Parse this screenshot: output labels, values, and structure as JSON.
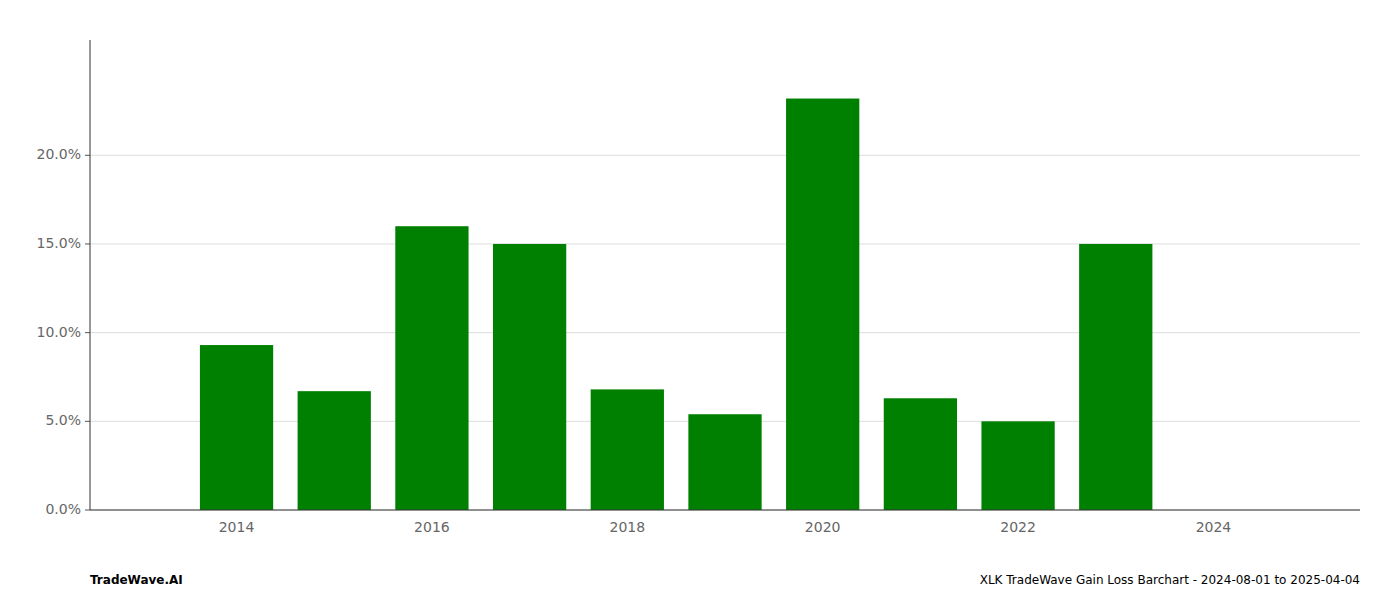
{
  "chart_data": {
    "type": "bar",
    "x": [
      2014,
      2015,
      2016,
      2017,
      2018,
      2019,
      2020,
      2021,
      2022,
      2023,
      2024
    ],
    "values": [
      0.093,
      0.067,
      0.16,
      0.15,
      0.068,
      0.054,
      0.232,
      0.063,
      0.05,
      0.15,
      0.0
    ],
    "color": "#008000",
    "xlim": [
      2012.5,
      2025.5
    ],
    "xticks": [
      2014,
      2016,
      2018,
      2020,
      2022,
      2024
    ],
    "ylim": [
      0.0,
      0.265
    ],
    "yticks": [
      {
        "value": 0.0,
        "label": "0.0%"
      },
      {
        "value": 0.05,
        "label": "5.0%"
      },
      {
        "value": 0.1,
        "label": "10.0%"
      },
      {
        "value": 0.15,
        "label": "15.0%"
      },
      {
        "value": 0.2,
        "label": "20.0%"
      }
    ],
    "grid": true,
    "annotations": [
      "TradeWave.AI",
      "XLK TradeWave Gain Loss Barchart - 2024-08-01 to 2025-04-04"
    ]
  }
}
